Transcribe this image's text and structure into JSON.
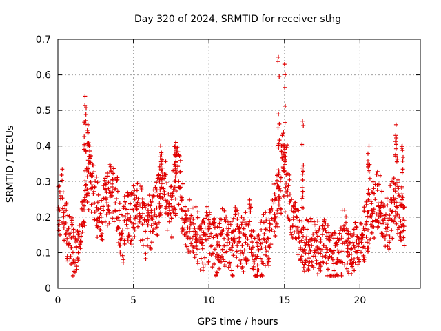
{
  "chart_data": {
    "type": "scatter",
    "title": "Day 320 of 2024, SRMTID for receiver sthg",
    "xlabel": "GPS time / hours",
    "ylabel": "SRMTID / TECUs",
    "xlim": [
      0,
      24
    ],
    "ylim": [
      0,
      0.7
    ],
    "xticks": [
      0,
      5,
      10,
      15,
      20
    ],
    "xtick_labels": [
      "0",
      "5",
      "10",
      "15",
      "20"
    ],
    "yticks": [
      0,
      0.1,
      0.2,
      0.3,
      0.4,
      0.5,
      0.6,
      0.7
    ],
    "ytick_labels": [
      "0",
      "0.1",
      "0.2",
      "0.3",
      "0.4",
      "0.5",
      "0.6",
      "0.7"
    ],
    "grid": true,
    "marker": "plus",
    "marker_color": "#e00000",
    "series": [
      {
        "name": "SRMTID",
        "x": [
          0.0,
          0.2,
          0.4,
          0.6,
          0.8,
          1.0,
          1.2,
          1.4,
          1.6,
          1.8,
          2.0,
          2.2,
          2.4,
          2.6,
          2.8,
          3.0,
          3.2,
          3.4,
          3.6,
          3.8,
          4.0,
          4.2,
          4.4,
          4.6,
          4.8,
          5.0,
          5.2,
          5.4,
          5.6,
          5.8,
          6.0,
          6.2,
          6.4,
          6.6,
          6.8,
          7.0,
          7.2,
          7.4,
          7.6,
          7.8,
          8.0,
          8.2,
          8.4,
          8.6,
          8.8,
          9.0,
          9.2,
          9.4,
          9.6,
          9.8,
          10.0,
          10.2,
          10.4,
          10.6,
          10.8,
          11.0,
          11.2,
          11.4,
          11.6,
          11.8,
          12.0,
          12.2,
          12.4,
          12.6,
          12.8,
          13.0,
          13.2,
          13.4,
          13.6,
          13.8,
          14.0,
          14.2,
          14.4,
          14.6,
          14.8,
          15.0,
          15.2,
          15.4,
          15.6,
          15.8,
          16.0,
          16.2,
          16.4,
          16.6,
          16.8,
          17.0,
          17.2,
          17.4,
          17.6,
          17.8,
          18.0,
          18.2,
          18.4,
          18.6,
          18.8,
          19.0,
          19.2,
          19.4,
          19.6,
          19.8,
          20.0,
          20.2,
          20.4,
          20.6,
          20.8,
          21.0,
          21.2,
          21.4,
          21.6,
          21.8,
          22.0,
          22.2,
          22.4,
          22.6,
          22.8
        ],
        "y": [
          0.22,
          0.26,
          0.17,
          0.14,
          0.12,
          0.1,
          0.13,
          0.16,
          0.18,
          0.33,
          0.36,
          0.28,
          0.24,
          0.22,
          0.21,
          0.23,
          0.25,
          0.27,
          0.26,
          0.24,
          0.17,
          0.15,
          0.19,
          0.21,
          0.2,
          0.22,
          0.23,
          0.21,
          0.18,
          0.16,
          0.19,
          0.2,
          0.22,
          0.26,
          0.31,
          0.28,
          0.24,
          0.21,
          0.26,
          0.33,
          0.3,
          0.22,
          0.19,
          0.17,
          0.18,
          0.16,
          0.14,
          0.13,
          0.12,
          0.15,
          0.14,
          0.12,
          0.11,
          0.13,
          0.15,
          0.14,
          0.12,
          0.11,
          0.16,
          0.14,
          0.13,
          0.12,
          0.15,
          0.18,
          0.11,
          0.08,
          0.09,
          0.11,
          0.14,
          0.13,
          0.19,
          0.22,
          0.25,
          0.28,
          0.4,
          0.33,
          0.26,
          0.17,
          0.2,
          0.14,
          0.13,
          0.11,
          0.12,
          0.13,
          0.12,
          0.1,
          0.11,
          0.13,
          0.12,
          0.1,
          0.09,
          0.08,
          0.07,
          0.1,
          0.14,
          0.13,
          0.12,
          0.11,
          0.12,
          0.1,
          0.13,
          0.15,
          0.18,
          0.2,
          0.22,
          0.25,
          0.24,
          0.21,
          0.19,
          0.18,
          0.22,
          0.25,
          0.23,
          0.2,
          0.18
        ],
        "peaks": [
          {
            "x": 1.8,
            "y": 0.54
          },
          {
            "x": 2.0,
            "y": 0.46
          },
          {
            "x": 7.8,
            "y": 0.41
          },
          {
            "x": 6.8,
            "y": 0.4
          },
          {
            "x": 14.6,
            "y": 0.65
          },
          {
            "x": 15.0,
            "y": 0.63
          },
          {
            "x": 16.2,
            "y": 0.47
          },
          {
            "x": 20.6,
            "y": 0.4
          },
          {
            "x": 22.4,
            "y": 0.46
          },
          {
            "x": 22.8,
            "y": 0.4
          }
        ]
      }
    ]
  }
}
